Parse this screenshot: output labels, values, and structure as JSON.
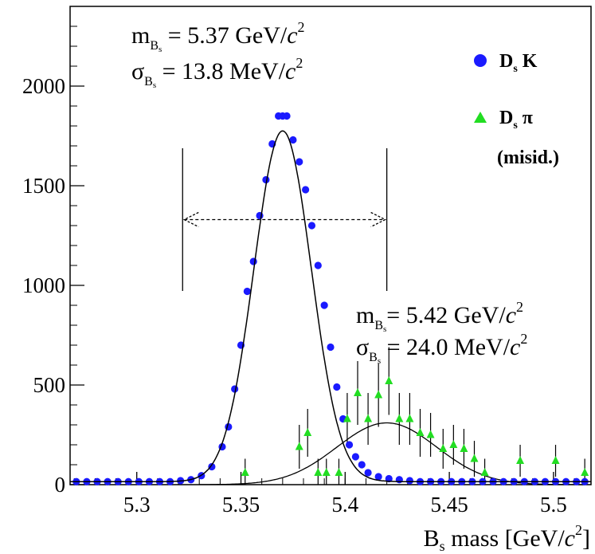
{
  "chart_data": {
    "type": "scatter",
    "xlabel": {
      "main": "B",
      "sub": "s",
      "rest": " mass [GeV/",
      "c": "c",
      "sup": "2",
      "close": "]"
    },
    "xlim": [
      5.268,
      5.518
    ],
    "ylim": [
      0,
      2400
    ],
    "xticks": [
      {
        "v": 5.3,
        "label": "5.3"
      },
      {
        "v": 5.35,
        "label": "5.35"
      },
      {
        "v": 5.4,
        "label": "5.4"
      },
      {
        "v": 5.45,
        "label": "5.45"
      },
      {
        "v": 5.5,
        "label": "5.5"
      }
    ],
    "yticks": [
      {
        "v": 0,
        "label": "0"
      },
      {
        "v": 500,
        "label": "500"
      },
      {
        "v": 1000,
        "label": "1000"
      },
      {
        "v": 1500,
        "label": "1500"
      },
      {
        "v": 2000,
        "label": "2000"
      }
    ],
    "series": [
      {
        "name": "Ds K",
        "legend_main": "D",
        "legend_sub": "s",
        "legend_rest": " K",
        "marker": "circle",
        "color": "#1a1aff",
        "x": [
          5.271,
          5.276,
          5.281,
          5.286,
          5.291,
          5.296,
          5.301,
          5.306,
          5.311,
          5.316,
          5.321,
          5.326,
          5.331,
          5.336,
          5.341,
          5.344,
          5.347,
          5.35,
          5.353,
          5.356,
          5.359,
          5.362,
          5.365,
          5.368,
          5.37,
          5.372,
          5.375,
          5.378,
          5.381,
          5.384,
          5.387,
          5.39,
          5.393,
          5.396,
          5.399,
          5.402,
          5.405,
          5.408,
          5.411,
          5.416,
          5.421,
          5.426,
          5.431,
          5.436,
          5.441,
          5.446,
          5.451,
          5.456,
          5.461,
          5.466,
          5.471,
          5.476,
          5.481,
          5.486,
          5.491,
          5.496,
          5.501,
          5.506,
          5.511,
          5.515
        ],
        "y": [
          15,
          15,
          15,
          15,
          15,
          15,
          15,
          15,
          15,
          15,
          20,
          25,
          45,
          90,
          190,
          290,
          480,
          700,
          970,
          1120,
          1350,
          1530,
          1710,
          1850,
          1850,
          1850,
          1730,
          1620,
          1480,
          1300,
          1100,
          900,
          690,
          490,
          330,
          200,
          140,
          100,
          60,
          40,
          30,
          25,
          20,
          15,
          15,
          15,
          15,
          15,
          15,
          15,
          15,
          15,
          15,
          15,
          15,
          15,
          15,
          15,
          15,
          15
        ],
        "fit": {
          "mean": 5.37,
          "sigma": 0.0138,
          "amp": 1760,
          "bkg": 15
        }
      },
      {
        "name": "Ds π (misid.)",
        "legend_main": "D",
        "legend_sub": "s",
        "legend_rest": " π",
        "legend_extra": "(misid.)",
        "marker": "triangle",
        "color": "#22dd22",
        "x": [
          5.352,
          5.378,
          5.382,
          5.387,
          5.391,
          5.397,
          5.401,
          5.406,
          5.411,
          5.416,
          5.421,
          5.426,
          5.431,
          5.436,
          5.441,
          5.447,
          5.452,
          5.457,
          5.462,
          5.467,
          5.484,
          5.501,
          5.515
        ],
        "y": [
          60,
          190,
          260,
          60,
          60,
          60,
          330,
          460,
          330,
          450,
          520,
          330,
          330,
          260,
          250,
          180,
          200,
          180,
          130,
          60,
          120,
          120,
          60
        ],
        "err": [
          70,
          110,
          120,
          70,
          70,
          70,
          130,
          160,
          130,
          160,
          170,
          130,
          130,
          120,
          110,
          100,
          100,
          100,
          90,
          70,
          80,
          80,
          70
        ],
        "fit": {
          "mean": 5.42,
          "sigma": 0.024,
          "amp": 310
        }
      }
    ],
    "window": {
      "x1": 5.322,
      "x2": 5.42,
      "y": 1330
    },
    "annotations": {
      "top": {
        "m_main": "m",
        "m_sub_main": "B",
        "m_sub_sub": "s",
        "m_text": " =    5.37 GeV/",
        "sigma_main": "σ",
        "sigma_text": " =  13.8 MeV/",
        "c": "c",
        "sup": "2"
      },
      "bottom": {
        "m_main": "m",
        "m_sub_main": "B",
        "m_sub_sub": "s",
        "m_text": "=  5.42 GeV/",
        "sigma_main": "σ",
        "sigma_text": " =  24.0 MeV/",
        "c": "c",
        "sup": "2"
      }
    }
  }
}
